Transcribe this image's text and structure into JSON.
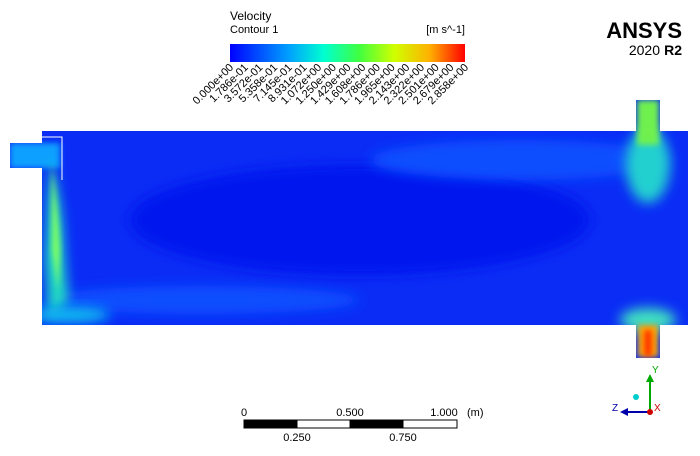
{
  "legend": {
    "title": "Velocity",
    "subtitle": "Contour 1",
    "unit": "[m s^-1]",
    "ticks": [
      "0.000e+00",
      "1.786e-01",
      "3.572e-01",
      "5.358e-01",
      "7.145e-01",
      "8.931e-01",
      "1.072e+00",
      "1.250e+00",
      "1.429e+00",
      "1.608e+00",
      "1.786e+00",
      "1.965e+00",
      "2.143e+00",
      "2.322e+00",
      "2.501e+00",
      "2.679e+00",
      "2.858e+00"
    ]
  },
  "logo": {
    "brand": "ANSYS",
    "year": "2020",
    "release": "R2"
  },
  "scale_bar": {
    "top_labels": [
      "0",
      "0.500",
      "1.000"
    ],
    "unit": "(m)",
    "bottom_labels": [
      "0.250",
      "0.750"
    ]
  },
  "triad": {
    "y": "Y",
    "z": "Z",
    "x": "X"
  }
}
